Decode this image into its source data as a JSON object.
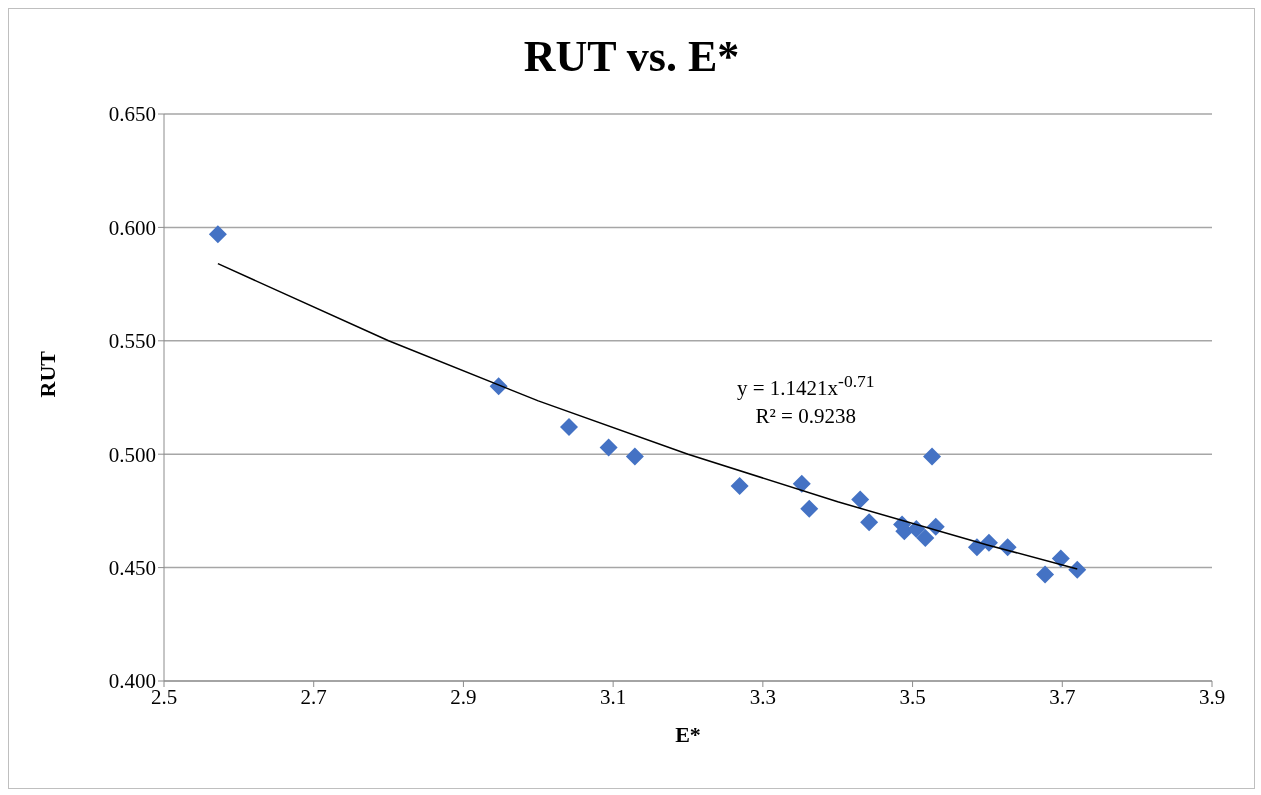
{
  "chart_data": {
    "type": "scatter",
    "title": "RUT vs. E*",
    "xlabel": "E*",
    "ylabel": "RUT",
    "annotations": [
      "y = 1.1421x$^{-0.71}$",
      "R² = 0.9238"
    ],
    "xlim": [
      2.5,
      3.9
    ],
    "xticks": [
      2.5,
      2.7,
      2.9,
      3.1,
      3.3,
      3.5,
      3.7,
      3.9
    ],
    "ylim": [
      0.4,
      0.65
    ],
    "yticks": [
      {
        "value": 0.4,
        "label": "0.400"
      },
      {
        "value": 0.45,
        "label": "0.450"
      },
      {
        "value": 0.5,
        "label": "0.500"
      },
      {
        "value": 0.55,
        "label": "0.550"
      },
      {
        "value": 0.6,
        "label": "0.600"
      },
      {
        "value": 0.65,
        "label": "0.650"
      }
    ],
    "grid": "y",
    "marker": "diamond",
    "series": [
      {
        "color": "#4472c4",
        "x": [
          2.572,
          2.947,
          3.041,
          3.094,
          3.129,
          3.269,
          3.352,
          3.362,
          3.43,
          3.442,
          3.486,
          3.489,
          3.505,
          3.517,
          3.526,
          3.531,
          3.586,
          3.602,
          3.627,
          3.677,
          3.698,
          3.72
        ],
        "values": [
          0.597,
          0.53,
          0.512,
          0.503,
          0.499,
          0.486,
          0.487,
          0.476,
          0.48,
          0.47,
          0.469,
          0.466,
          0.467,
          0.463,
          0.499,
          0.468,
          0.459,
          0.461,
          0.459,
          0.447,
          0.454,
          0.449
        ]
      },
      {
        "type": "line",
        "color": "#000000",
        "marker": "none",
        "x": [
          2.572,
          2.8,
          3.0,
          3.2,
          3.4,
          3.6,
          3.72
        ],
        "values": [
          0.584,
          0.55,
          0.5235,
          0.5,
          0.479,
          0.46,
          0.4494
        ]
      }
    ]
  }
}
